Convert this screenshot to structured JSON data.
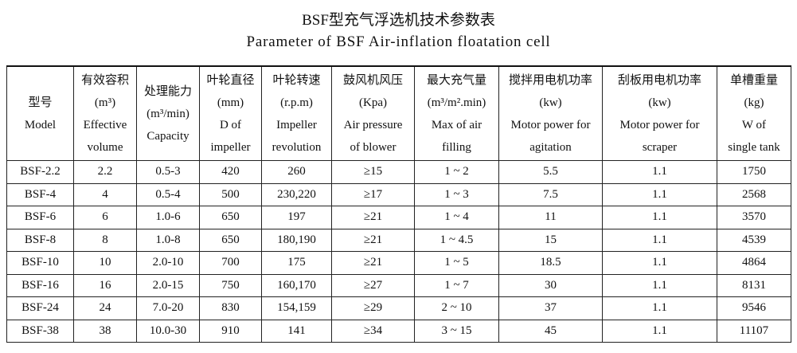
{
  "header": {
    "title": "BSF型充气浮选机技术参数表",
    "subtitle": "Parameter of BSF Air-inflation floatation cell"
  },
  "table": {
    "columns": [
      [
        "型号",
        "Model"
      ],
      [
        "有效容积",
        "(m³)",
        "Effective",
        "volume"
      ],
      [
        "处理能力",
        "(m³/min)",
        "Capacity"
      ],
      [
        "叶轮直径",
        "(mm)",
        "D of",
        "impeller"
      ],
      [
        "叶轮转速",
        "(r.p.m)",
        "Impeller",
        "revolution"
      ],
      [
        "鼓风机风压",
        "(Kpa)",
        "Air pressure",
        "of blower"
      ],
      [
        "最大充气量",
        "(m³/m².min)",
        "Max of air",
        "filling"
      ],
      [
        "搅拌用电机功率",
        "(kw)",
        "Motor power for",
        "agitation"
      ],
      [
        "刮板用电机功率",
        "(kw)",
        "Motor power for",
        "scraper"
      ],
      [
        "单槽重量",
        "(kg)",
        "W of",
        "single tank"
      ]
    ],
    "rows": [
      [
        "BSF-2.2",
        "2.2",
        "0.5-3",
        "420",
        "260",
        "≥15",
        "1 ~ 2",
        "5.5",
        "1.1",
        "1750"
      ],
      [
        "BSF-4",
        "4",
        "0.5-4",
        "500",
        "230,220",
        "≥17",
        "1 ~ 3",
        "7.5",
        "1.1",
        "2568"
      ],
      [
        "BSF-6",
        "6",
        "1.0-6",
        "650",
        "197",
        "≥21",
        "1 ~ 4",
        "11",
        "1.1",
        "3570"
      ],
      [
        "BSF-8",
        "8",
        "1.0-8",
        "650",
        "180,190",
        "≥21",
        "1 ~ 4.5",
        "15",
        "1.1",
        "4539"
      ],
      [
        "BSF-10",
        "10",
        "2.0-10",
        "700",
        "175",
        "≥21",
        "1 ~ 5",
        "18.5",
        "1.1",
        "4864"
      ],
      [
        "BSF-16",
        "16",
        "2.0-15",
        "750",
        "160,170",
        "≥27",
        "1 ~ 7",
        "30",
        "1.1",
        "8131"
      ],
      [
        "BSF-24",
        "24",
        "7.0-20",
        "830",
        "154,159",
        "≥29",
        "2 ~ 10",
        "37",
        "1.1",
        "9546"
      ],
      [
        "BSF-38",
        "38",
        "10.0-30",
        "910",
        "141",
        "≥34",
        "3 ~ 15",
        "45",
        "1.1",
        "11107"
      ]
    ]
  }
}
